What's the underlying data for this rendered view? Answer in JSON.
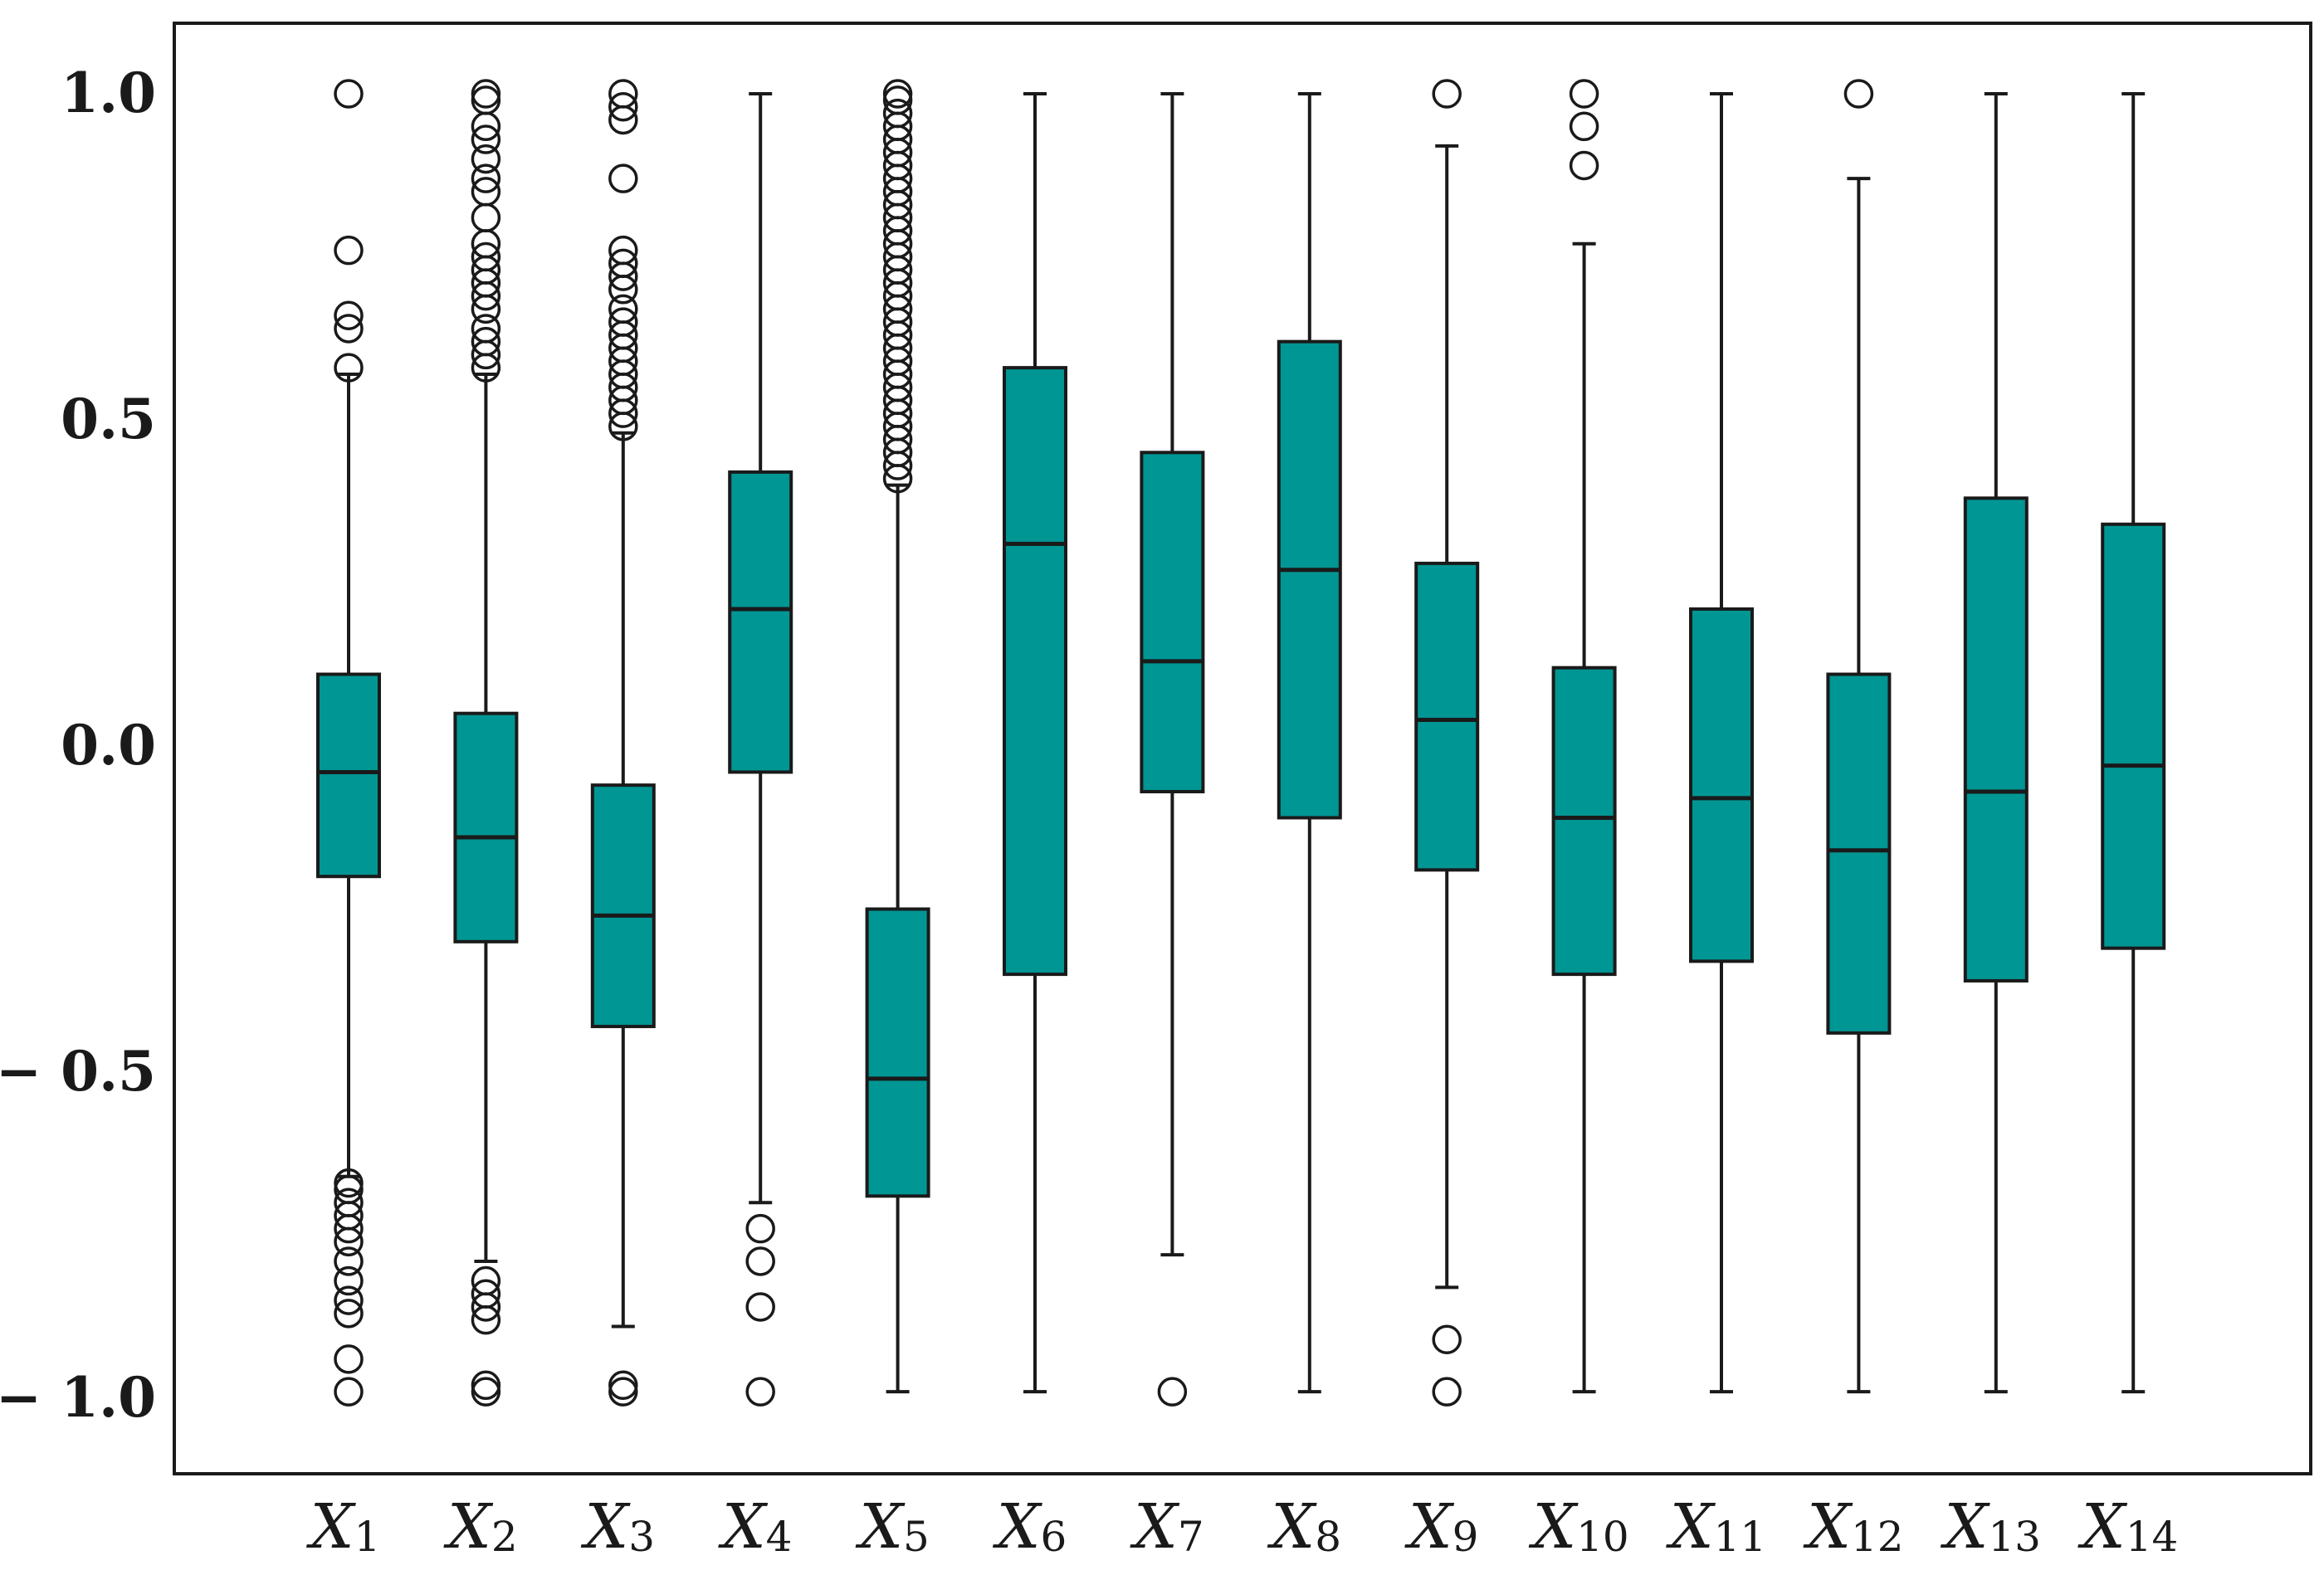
{
  "colors": {
    "box_fill": "#009694",
    "box_edge": "#1a1a1a",
    "whisker": "#1a1a1a",
    "median": "#1a1a1a",
    "outlier_edge": "#1a1a1a",
    "frame": "#1a1a1a",
    "background": "#ffffff"
  },
  "chart_data": {
    "type": "box",
    "title": "",
    "xlabel": "",
    "ylabel": "",
    "ylim": [
      -1.1,
      1.1
    ],
    "grid": false,
    "legend": "none",
    "yticks": [
      {
        "value": 1.0,
        "label": "1.0"
      },
      {
        "value": 0.5,
        "label": "0.5"
      },
      {
        "value": 0.0,
        "label": "0.0"
      },
      {
        "value": -0.5,
        "label": "− 0.5"
      },
      {
        "value": -1.0,
        "label": "− 1.0"
      }
    ],
    "categories": [
      {
        "base": "X",
        "sub": "1"
      },
      {
        "base": "X",
        "sub": "2"
      },
      {
        "base": "X",
        "sub": "3"
      },
      {
        "base": "X",
        "sub": "4"
      },
      {
        "base": "X",
        "sub": "5"
      },
      {
        "base": "X",
        "sub": "6"
      },
      {
        "base": "X",
        "sub": "7"
      },
      {
        "base": "X",
        "sub": "8"
      },
      {
        "base": "X",
        "sub": "9"
      },
      {
        "base": "X",
        "sub": "10"
      },
      {
        "base": "X",
        "sub": "11"
      },
      {
        "base": "X",
        "sub": "12"
      },
      {
        "base": "X",
        "sub": "13"
      },
      {
        "base": "X",
        "sub": "14"
      }
    ],
    "boxes": [
      {
        "whisker_low": -0.66,
        "q1": -0.2,
        "median": -0.04,
        "q3": 0.11,
        "whisker_high": 0.57,
        "outliers": [
          1.0,
          0.76,
          0.66,
          0.64,
          0.58,
          -0.67,
          -0.68,
          -0.7,
          -0.72,
          -0.74,
          -0.76,
          -0.79,
          -0.82,
          -0.85,
          -0.87,
          -0.94,
          -0.99
        ]
      },
      {
        "whisker_low": -0.79,
        "q1": -0.3,
        "median": -0.14,
        "q3": 0.05,
        "whisker_high": 0.57,
        "outliers": [
          1.0,
          0.99,
          0.95,
          0.93,
          0.9,
          0.87,
          0.85,
          0.81,
          0.77,
          0.75,
          0.73,
          0.71,
          0.69,
          0.67,
          0.64,
          0.62,
          0.6,
          0.58,
          -0.82,
          -0.84,
          -0.86,
          -0.88,
          -0.98,
          -0.99
        ]
      },
      {
        "whisker_low": -0.89,
        "q1": -0.43,
        "median": -0.26,
        "q3": -0.06,
        "whisker_high": 0.48,
        "outliers": [
          1.0,
          0.98,
          0.96,
          0.87,
          0.76,
          0.74,
          0.72,
          0.7,
          0.67,
          0.65,
          0.63,
          0.61,
          0.59,
          0.57,
          0.55,
          0.53,
          0.51,
          0.49,
          -0.98,
          -0.99
        ]
      },
      {
        "whisker_low": -0.7,
        "q1": -0.04,
        "median": 0.21,
        "q3": 0.42,
        "whisker_high": 1.0,
        "outliers": [
          -0.74,
          -0.79,
          -0.86,
          -0.99
        ]
      },
      {
        "whisker_low": -0.99,
        "q1": -0.69,
        "median": -0.51,
        "q3": -0.25,
        "whisker_high": 0.4,
        "outliers": [
          1.0,
          0.99,
          0.97,
          0.95,
          0.93,
          0.91,
          0.89,
          0.87,
          0.85,
          0.83,
          0.81,
          0.79,
          0.77,
          0.75,
          0.73,
          0.71,
          0.69,
          0.67,
          0.65,
          0.63,
          0.61,
          0.59,
          0.57,
          0.55,
          0.53,
          0.51,
          0.49,
          0.47,
          0.45,
          0.43,
          0.41
        ]
      },
      {
        "whisker_low": -0.99,
        "q1": -0.35,
        "median": 0.31,
        "q3": 0.58,
        "whisker_high": 1.0,
        "outliers": []
      },
      {
        "whisker_low": -0.78,
        "q1": -0.07,
        "median": 0.13,
        "q3": 0.45,
        "whisker_high": 1.0,
        "outliers": [
          -0.99
        ]
      },
      {
        "whisker_low": -0.99,
        "q1": -0.11,
        "median": 0.27,
        "q3": 0.62,
        "whisker_high": 1.0,
        "outliers": []
      },
      {
        "whisker_low": -0.83,
        "q1": -0.19,
        "median": 0.04,
        "q3": 0.28,
        "whisker_high": 0.92,
        "outliers": [
          1.0,
          -0.91,
          -0.99
        ]
      },
      {
        "whisker_low": -0.99,
        "q1": -0.35,
        "median": -0.11,
        "q3": 0.12,
        "whisker_high": 0.77,
        "outliers": [
          1.0,
          0.95,
          0.89
        ]
      },
      {
        "whisker_low": -0.99,
        "q1": -0.33,
        "median": -0.08,
        "q3": 0.21,
        "whisker_high": 1.0,
        "outliers": []
      },
      {
        "whisker_low": -0.99,
        "q1": -0.44,
        "median": -0.16,
        "q3": 0.11,
        "whisker_high": 0.87,
        "outliers": [
          1.0
        ]
      },
      {
        "whisker_low": -0.99,
        "q1": -0.36,
        "median": -0.07,
        "q3": 0.38,
        "whisker_high": 1.0,
        "outliers": []
      },
      {
        "whisker_low": -0.99,
        "q1": -0.31,
        "median": -0.03,
        "q3": 0.34,
        "whisker_high": 1.0,
        "outliers": []
      }
    ]
  }
}
